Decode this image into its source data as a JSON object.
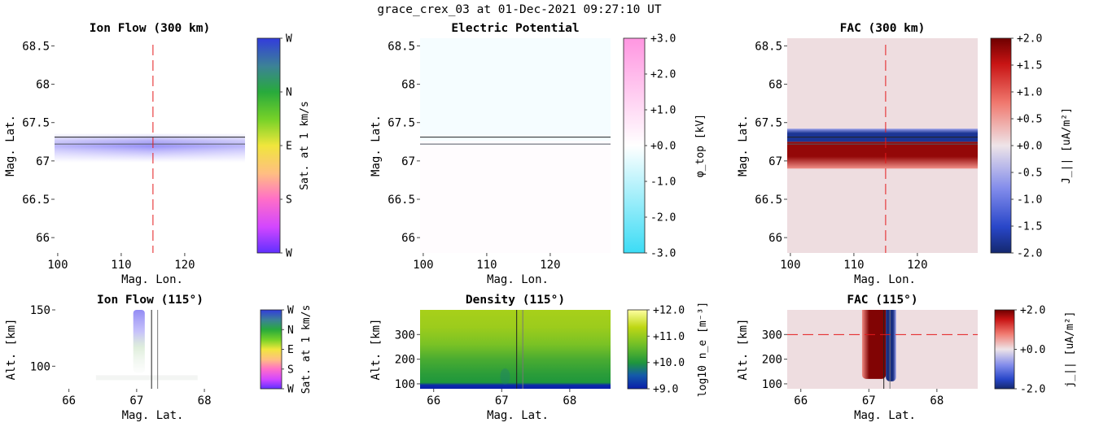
{
  "suptitle": "grace_crex_03 at 01-Dec-2021 09:27:10 UT",
  "colors": {
    "ref_line": "#e41a1c",
    "track_line": "#222222",
    "track_line_alt": "#777777"
  },
  "chart_data": [
    {
      "type": "heatmap",
      "title": "Ion Flow (300 km)",
      "xlabel": "Mag. Lon.",
      "ylabel": "Mag. Lat.",
      "xticks": [
        "100",
        "110",
        "120"
      ],
      "yticks": [
        "68.5",
        "68",
        "67.5",
        "67",
        "66.5",
        "66"
      ],
      "xlim": [
        99.5,
        129.5
      ],
      "ylim": [
        65.8,
        68.6
      ],
      "field": "flow",
      "band": {
        "lat_min": 67.1,
        "lat_max": 67.3,
        "peak_lat": 67.22
      },
      "track_lats": [
        67.22,
        67.31
      ],
      "ref_lon": 115,
      "colorbar": {
        "scale": "direction",
        "label": "Sat. at 1 km/s",
        "ticks": [
          "W",
          "N",
          "E",
          "S",
          "W"
        ]
      }
    },
    {
      "type": "heatmap",
      "title": "Electric Potential",
      "xlabel": "Mag. Lon.",
      "ylabel": "Mag. Lat.",
      "xticks": [
        "100",
        "110",
        "120"
      ],
      "yticks": [
        "68.5",
        "68",
        "67.5",
        "67",
        "66.5",
        "66"
      ],
      "xlim": [
        99.5,
        129.5
      ],
      "ylim": [
        65.8,
        68.6
      ],
      "field": "potential",
      "regions": {
        "north_value_kV": -0.15,
        "south_value_kV": 0.1,
        "boundary_lat": 67.26
      },
      "track_lats": [
        67.22,
        67.31
      ],
      "colorbar": {
        "scale": "potential",
        "label": "φ_top [kV]",
        "ticks": [
          "+3.0",
          "+2.0",
          "+1.0",
          "+0.0",
          "-1.0",
          "-2.0",
          "-3.0"
        ],
        "range": [
          -3,
          3
        ]
      }
    },
    {
      "type": "heatmap",
      "title": "FAC (300 km)",
      "xlabel": "Mag. Lon.",
      "ylabel": "Mag. Lat.",
      "xticks": [
        "100",
        "110",
        "120"
      ],
      "yticks": [
        "68.5",
        "68",
        "67.5",
        "67",
        "66.5",
        "66"
      ],
      "xlim": [
        99.5,
        129.5
      ],
      "ylim": [
        65.8,
        68.6
      ],
      "field": "fac",
      "layers": [
        {
          "lat_min": 66.9,
          "lat_max": 67.25,
          "value": 1.8
        },
        {
          "lat_min": 67.25,
          "lat_max": 67.42,
          "value": -1.8
        }
      ],
      "background_value": 0.05,
      "track_lats": [
        67.22,
        67.31
      ],
      "ref_lon": 115,
      "colorbar": {
        "scale": "diverging",
        "label": "J_|| [uA/m²]",
        "ticks": [
          "+2.0",
          "+1.5",
          "+1.0",
          "+0.5",
          "+0.0",
          "-0.5",
          "-1.0",
          "-1.5",
          "-2.0"
        ],
        "range": [
          -2,
          2
        ]
      }
    },
    {
      "type": "heatmap",
      "title": "Ion Flow (115°)",
      "xlabel": "Mag. Lat.",
      "ylabel": "Alt. [km]",
      "xticks": [
        "66",
        "67",
        "68"
      ],
      "yticks": [
        "150",
        "100"
      ],
      "xlim": [
        65.8,
        68.6
      ],
      "ylim": [
        80,
        150
      ],
      "field": "flow_alt",
      "track_lats": [
        67.22,
        67.31
      ],
      "colorbar": {
        "scale": "direction",
        "label": "Sat. at 1 km/s",
        "ticks": [
          "W",
          "N",
          "E",
          "S",
          "W"
        ]
      }
    },
    {
      "type": "heatmap",
      "title": "Density (115°)",
      "xlabel": "Mag. Lat.",
      "ylabel": "Alt. [km]",
      "xticks": [
        "66",
        "67",
        "68"
      ],
      "yticks": [
        "300",
        "200",
        "100"
      ],
      "xlim": [
        65.8,
        68.6
      ],
      "ylim": [
        80,
        400
      ],
      "field": "density",
      "profile_log10_ne": [
        {
          "alt": 80,
          "value": 9.0
        },
        {
          "alt": 95,
          "value": 9.1
        },
        {
          "alt": 105,
          "value": 10.0
        },
        {
          "alt": 140,
          "value": 10.1
        },
        {
          "alt": 200,
          "value": 10.35
        },
        {
          "alt": 260,
          "value": 10.75
        },
        {
          "alt": 330,
          "value": 11.05
        },
        {
          "alt": 400,
          "value": 11.15
        }
      ],
      "track_lats": [
        67.22,
        67.31
      ],
      "colorbar": {
        "scale": "density",
        "label": "log10 n_e [m⁻³]",
        "ticks": [
          "+12.0",
          "+11.0",
          "+10.0",
          "+9.0"
        ],
        "range": [
          9,
          12
        ]
      }
    },
    {
      "type": "heatmap",
      "title": "FAC (115°)",
      "xlabel": "Mag. Lat.",
      "ylabel": "Alt. [km]",
      "xticks": [
        "66",
        "67",
        "68"
      ],
      "yticks": [
        "300",
        "200",
        "100"
      ],
      "xlim": [
        65.8,
        68.6
      ],
      "ylim": [
        80,
        400
      ],
      "field": "fac_alt",
      "layers": [
        {
          "lat_min": 66.9,
          "lat_max": 67.25,
          "value": 1.9,
          "alt_min": 120
        },
        {
          "lat_min": 67.25,
          "lat_max": 67.4,
          "value": -1.9,
          "alt_min": 110
        }
      ],
      "background_value": 0.05,
      "track_lats": [
        67.22,
        67.31
      ],
      "ref_alt": 300,
      "colorbar": {
        "scale": "diverging",
        "label": "j_|| [uA/m²]",
        "ticks": [
          "+2.0",
          "+0.0",
          "-2.0"
        ],
        "range": [
          -2,
          2
        ]
      }
    }
  ]
}
